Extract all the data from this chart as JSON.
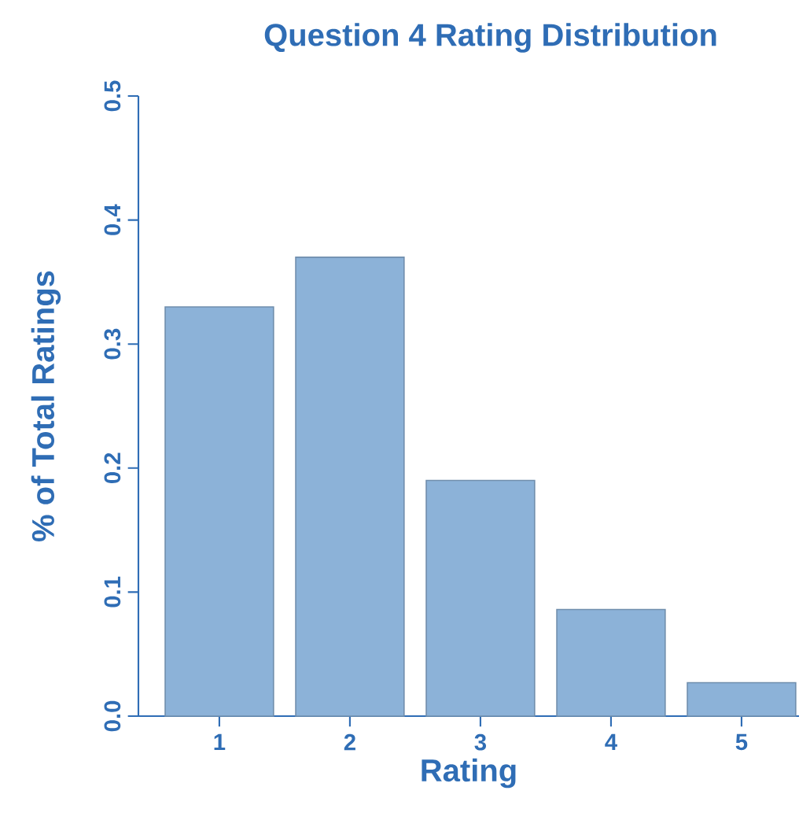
{
  "chart_data": {
    "type": "bar",
    "title": "Question  4  Rating Distribution",
    "xlabel": "Rating",
    "ylabel": "% of Total Ratings",
    "categories": [
      "1",
      "2",
      "3",
      "4",
      "5"
    ],
    "values": [
      0.33,
      0.37,
      0.19,
      0.086,
      0.027
    ],
    "color": "#8cb2d8",
    "ylim": [
      0,
      0.5
    ],
    "yticks": [
      {
        "value": 0,
        "label": "0.0"
      },
      0.1,
      0.2,
      0.3,
      0.4,
      0.5
    ]
  }
}
